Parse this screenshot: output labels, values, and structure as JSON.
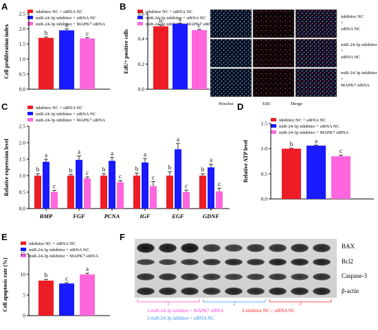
{
  "colors": {
    "inhibitor_nc": "#ee1c24",
    "mir_inhibitor": "#1a1aff",
    "mir_inhibitor_mapk7": "#ff66dd",
    "lane_label_pink": "#ff3fd0",
    "lane_label_blue": "#2d8cff",
    "lane_label_red": "#ff2020"
  },
  "panels": {
    "A": {
      "letter": "A"
    },
    "B": {
      "letter": "B"
    },
    "C": {
      "letter": "C"
    },
    "D": {
      "letter": "D"
    },
    "E": {
      "letter": "E"
    },
    "F": {
      "letter": "F"
    }
  },
  "legend3": [
    "inhibitor NC + siRNA NC",
    "miR-24-3p inhibitor + siRNA NC",
    "miR-24-3p inhibitor + MAPK7 siRNA"
  ],
  "chart_data": [
    {
      "id": "A",
      "type": "bar",
      "ylabel": "Cell proliferation index",
      "ylim": [
        0,
        2.5
      ],
      "yticks": [
        "0.0",
        "0.5",
        "1.0",
        "1.5",
        "2.0",
        "2.5"
      ],
      "series": [
        {
          "name": "inhibitor NC + siRNA NC",
          "values": [
            1.7
          ],
          "err": [
            0.03
          ],
          "sig": [
            "b"
          ]
        },
        {
          "name": "miR-24-3p inhibitor + siRNA NC",
          "values": [
            1.95
          ],
          "err": [
            0.05
          ],
          "sig": [
            "a"
          ]
        },
        {
          "name": "miR-24-3p inhibitor + MAPK7 siRNA",
          "values": [
            1.68
          ],
          "err": [
            0.03
          ],
          "sig": [
            "c"
          ]
        }
      ]
    },
    {
      "id": "B",
      "type": "bar",
      "ylabel": "EdU+ positive cells",
      "ylim": [
        0,
        0.6
      ],
      "yticks": [
        "0.0",
        "0.2",
        "0.4",
        "0.6"
      ],
      "series": [
        {
          "name": "inhibitor NC + siRNA NC",
          "values": [
            0.5
          ],
          "err": [
            0.01
          ],
          "sig": [
            "b"
          ]
        },
        {
          "name": "miR-24-3p inhibitor + siRNA NC",
          "values": [
            0.52
          ],
          "err": [
            0.005
          ],
          "sig": [
            "a"
          ]
        },
        {
          "name": "miR-24-3p inhibitor + MAPK7 siRNA",
          "values": [
            0.47
          ],
          "err": [
            0.005
          ],
          "sig": [
            "c"
          ]
        }
      ]
    },
    {
      "id": "C",
      "type": "bar",
      "ylabel": "Relative  expression level",
      "ylim": [
        0,
        2.5
      ],
      "yticks": [
        "0.0",
        "0.5",
        "1.0",
        "1.5",
        "2.0",
        "2.5"
      ],
      "categories": [
        "BMP",
        "FGF",
        "PCNA",
        "IGF",
        "EGF",
        "GDNF"
      ],
      "series": [
        {
          "name": "inhibitor NC + siRNA NC",
          "values": [
            1.0,
            1.0,
            1.0,
            1.0,
            1.0,
            1.0
          ],
          "err": [
            0.06,
            0.03,
            0.06,
            0.08,
            0.12,
            0.06
          ],
          "sig": [
            "b",
            "b",
            "b",
            "b",
            "b",
            "b"
          ]
        },
        {
          "name": "miR-24-3p inhibitor + siRNA NC",
          "values": [
            1.42,
            1.48,
            1.45,
            1.4,
            1.8,
            1.25
          ],
          "err": [
            0.08,
            0.12,
            0.1,
            0.12,
            0.18,
            0.1
          ],
          "sig": [
            "a",
            "a",
            "a",
            "a",
            "a",
            "a"
          ]
        },
        {
          "name": "miR-24-3p inhibitor + MAPK7 siRNA",
          "values": [
            0.5,
            0.92,
            0.8,
            0.68,
            0.5,
            0.52
          ],
          "err": [
            0.05,
            0.04,
            0.05,
            0.14,
            0.06,
            0.1
          ],
          "sig": [
            "c",
            "c",
            "c",
            "c",
            "c",
            "c"
          ]
        }
      ]
    },
    {
      "id": "D",
      "type": "bar",
      "ylabel": "Relative ATP level",
      "ylim": [
        0,
        1.5
      ],
      "yticks": [
        "0.0",
        "0.5",
        "1.0",
        "1.5"
      ],
      "series": [
        {
          "name": "inhibitor NC + siRNA NC",
          "values": [
            1.0
          ],
          "err": [
            0.01
          ],
          "sig": [
            "b"
          ]
        },
        {
          "name": "miR-24-3p inhibitor + siRNA NC",
          "values": [
            1.06
          ],
          "err": [
            0.01
          ],
          "sig": [
            "a"
          ]
        },
        {
          "name": "miR-24-3p inhibitor + MAPK7 siRNA",
          "values": [
            0.85
          ],
          "err": [
            0.02
          ],
          "sig": [
            "c"
          ]
        }
      ]
    },
    {
      "id": "E",
      "type": "bar",
      "ylabel": "Cell apoptosis rate (%)",
      "ylim": [
        0,
        15
      ],
      "yticks": [
        "0",
        "5",
        "10",
        "15"
      ],
      "series": [
        {
          "name": "inhibitor NC + siRNA NC",
          "values": [
            8.5
          ],
          "err": [
            0.3
          ],
          "sig": [
            "b"
          ]
        },
        {
          "name": "miR-24-3p inhibitor + siRNA NC",
          "values": [
            7.8
          ],
          "err": [
            0.2
          ],
          "sig": [
            "c"
          ]
        },
        {
          "name": "miR-24-3p inhibitor + MAPK7 siRNA",
          "values": [
            10.0
          ],
          "err": [
            0.3
          ],
          "sig": [
            "a"
          ]
        }
      ]
    }
  ],
  "micrographs": {
    "row_labels": [
      [
        "inhibitor NC",
        "+",
        "siRNA NC"
      ],
      [
        "miR-24-3p inhibitor",
        "+",
        "siRNA NC"
      ],
      [
        "miR-24-3p inhibitor",
        "+",
        "MAPK7 siRNA"
      ]
    ],
    "col_labels": [
      "Hoechst",
      "EdU",
      "Merge"
    ]
  },
  "western": {
    "bands": [
      "BAX",
      "Bcl2",
      "Caspase-3",
      "β-actin"
    ],
    "lane_numbers": [
      "1",
      "2",
      "3"
    ],
    "lane_captions": [
      "1-miR-24-3p inhibitor + MAPK7 siRNA",
      "2-miR-24-3p inhibitor + siRNA NC",
      "3-inhibitor NC + siRNA NC"
    ]
  }
}
